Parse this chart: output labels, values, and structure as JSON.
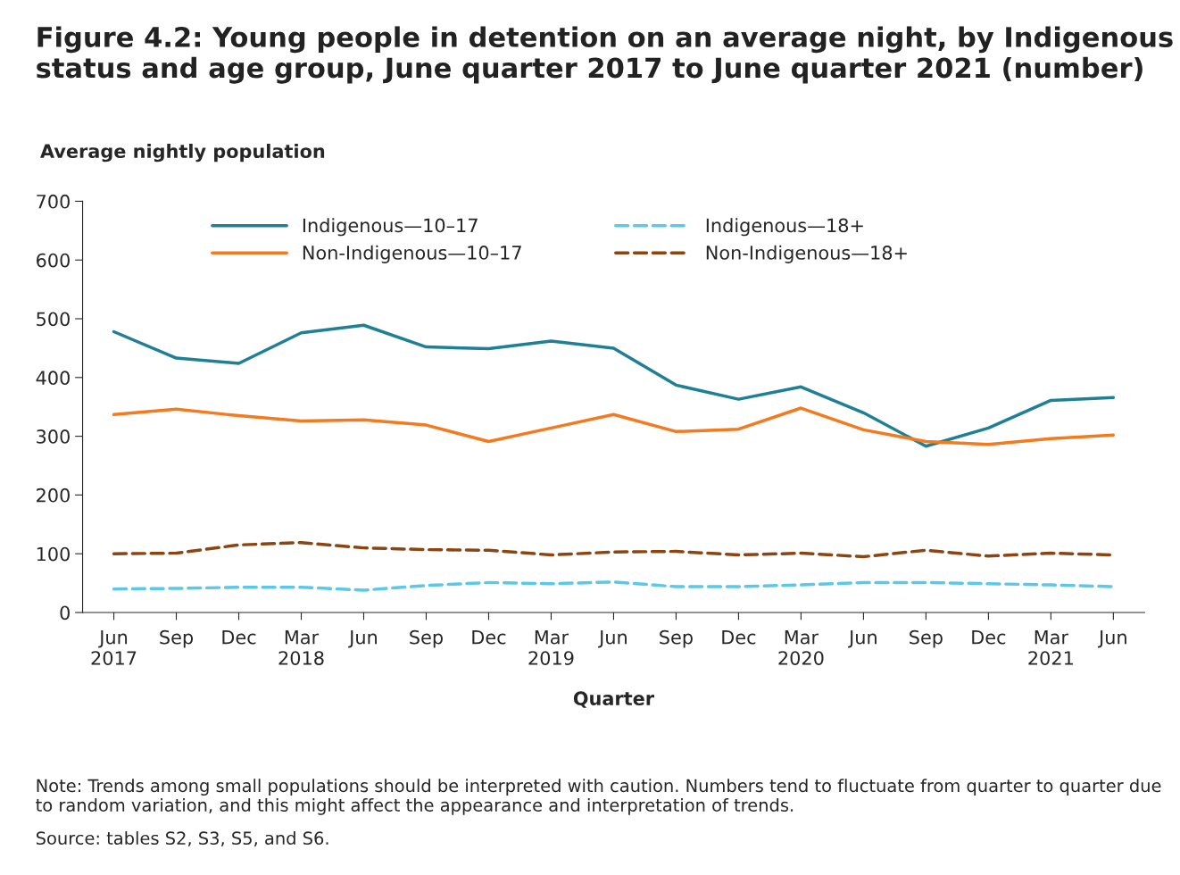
{
  "chart_data": {
    "type": "line",
    "title": "Figure 4.2: Young people in detention on an average night, by Indigenous status and age group, June quarter 2017 to June quarter 2021 (number)",
    "ylabel": "Average nightly population",
    "xlabel": "Quarter",
    "categories": [
      "Jun\n2017",
      "Sep",
      "Dec",
      "Mar\n2018",
      "Jun",
      "Sep",
      "Dec",
      "Mar\n2019",
      "Jun",
      "Sep",
      "Dec",
      "Mar\n2020",
      "Jun",
      "Sep",
      "Dec",
      "Mar\n2021",
      "Jun"
    ],
    "series": [
      {
        "name": "Indigenous—10–17",
        "color": "#1f7f95",
        "line_style": "solid",
        "values": [
          478,
          433,
          424,
          476,
          489,
          452,
          449,
          462,
          450,
          387,
          363,
          384,
          340,
          283,
          314,
          361,
          366
        ]
      },
      {
        "name": "Non-Indigenous—10–17",
        "color": "#f47a20",
        "line_style": "solid",
        "values": [
          337,
          346,
          335,
          326,
          328,
          319,
          291,
          314,
          337,
          308,
          312,
          348,
          311,
          291,
          286,
          296,
          302
        ]
      },
      {
        "name": "Indigenous—18+",
        "color": "#5bc8e8",
        "line_style": "dashed",
        "values": [
          40,
          41,
          43,
          43,
          38,
          46,
          51,
          49,
          52,
          44,
          44,
          47,
          51,
          51,
          49,
          47,
          44
        ]
      },
      {
        "name": "Non-Indigenous—18+",
        "color": "#8b4513",
        "line_style": "dashed",
        "values": [
          100,
          101,
          115,
          119,
          110,
          107,
          106,
          98,
          103,
          104,
          98,
          101,
          95,
          106,
          96,
          101,
          98
        ]
      }
    ],
    "ylim": [
      0,
      700
    ],
    "yticks": [
      0,
      100,
      200,
      300,
      400,
      500,
      600,
      700
    ],
    "grid": false,
    "legend": "top",
    "annotations": [
      "Note: Trends among small populations should be interpreted with caution. Numbers tend to fluctuate from quarter to quarter due to random variation, and this might affect the appearance and interpretation of trends.",
      "Source: tables S2, S3, S5, and S6."
    ]
  }
}
